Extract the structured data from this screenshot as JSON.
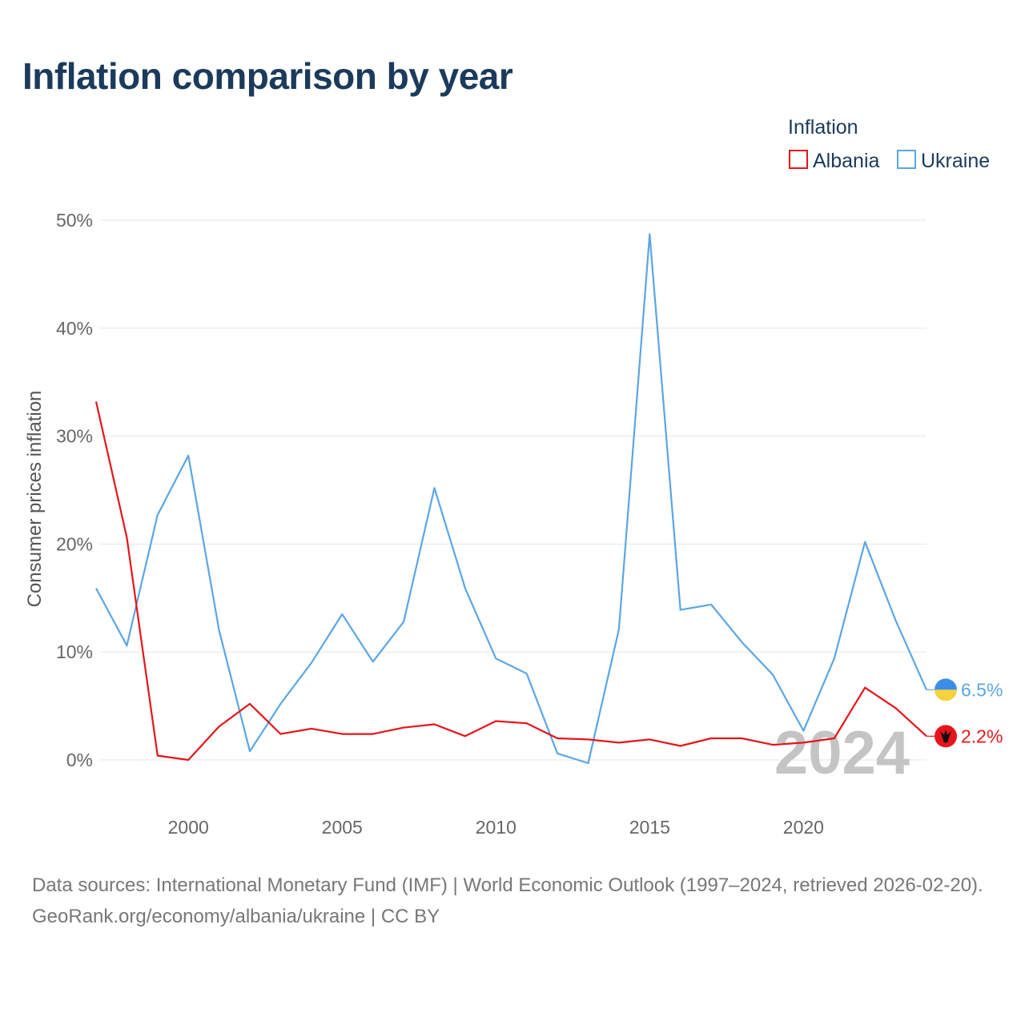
{
  "title": "Inflation comparison by year",
  "legend": {
    "title": "Inflation",
    "items": [
      {
        "name": "Albania",
        "color": "#e8141b"
      },
      {
        "name": "Ukraine",
        "color": "#5ba6e4"
      }
    ]
  },
  "year_watermark": "2024",
  "footer": {
    "sources": "Data sources: International Monetary Fund (IMF) | World Economic Outlook (1997–2024, retrieved 2026-02-20).",
    "credit": "GeoRank.org/economy/albania/ukraine | CC BY"
  },
  "chart_data": {
    "type": "line",
    "title": "Inflation comparison by year",
    "xlabel": "",
    "ylabel": "Consumer prices inflation",
    "xlim": [
      1997,
      2024
    ],
    "ylim": [
      -5,
      52
    ],
    "x_ticks": [
      2000,
      2005,
      2010,
      2015,
      2020
    ],
    "y_ticks": [
      0,
      10,
      20,
      30,
      40,
      50
    ],
    "y_tick_labels": [
      "0%",
      "10%",
      "20%",
      "30%",
      "40%",
      "50%"
    ],
    "x": [
      1997,
      1998,
      1999,
      2000,
      2001,
      2002,
      2003,
      2004,
      2005,
      2006,
      2007,
      2008,
      2009,
      2010,
      2011,
      2012,
      2013,
      2014,
      2015,
      2016,
      2017,
      2018,
      2019,
      2020,
      2021,
      2022,
      2023,
      2024
    ],
    "series": [
      {
        "name": "Albania",
        "color": "#e8141b",
        "end_label": "2.2%",
        "values": [
          33.2,
          20.6,
          0.4,
          0.0,
          3.1,
          5.2,
          2.4,
          2.9,
          2.4,
          2.4,
          3.0,
          3.3,
          2.2,
          3.6,
          3.4,
          2.0,
          1.9,
          1.6,
          1.9,
          1.3,
          2.0,
          2.0,
          1.4,
          1.6,
          2.0,
          6.7,
          4.8,
          2.2
        ]
      },
      {
        "name": "Ukraine",
        "color": "#5ba6e4",
        "end_label": "6.5%",
        "values": [
          15.9,
          10.6,
          22.7,
          28.2,
          12.0,
          0.8,
          5.2,
          9.0,
          13.5,
          9.1,
          12.8,
          25.2,
          15.9,
          9.4,
          8.0,
          0.6,
          -0.3,
          12.1,
          48.7,
          13.9,
          14.4,
          10.9,
          7.9,
          2.7,
          9.4,
          20.2,
          12.9,
          6.5
        ]
      }
    ]
  }
}
